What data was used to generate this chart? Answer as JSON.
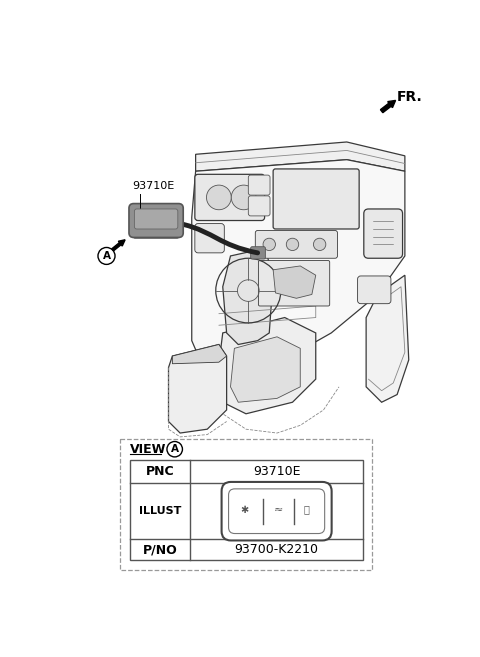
{
  "fr_label": "FR.",
  "part_label": "93710E",
  "pnc_value": "93710E",
  "pno_value": "93700-K2210",
  "background_color": "#ffffff",
  "line_color": "#000000",
  "dark_gray": "#555555",
  "mid_gray": "#888888",
  "light_gray": "#cccccc",
  "switch_gray": "#999999",
  "table_border": "#555555",
  "dash_border": "#888888",
  "view_label": "VIEW",
  "pnc_label": "PNC",
  "illust_label": "ILLUST",
  "pno_label": "P/NO"
}
